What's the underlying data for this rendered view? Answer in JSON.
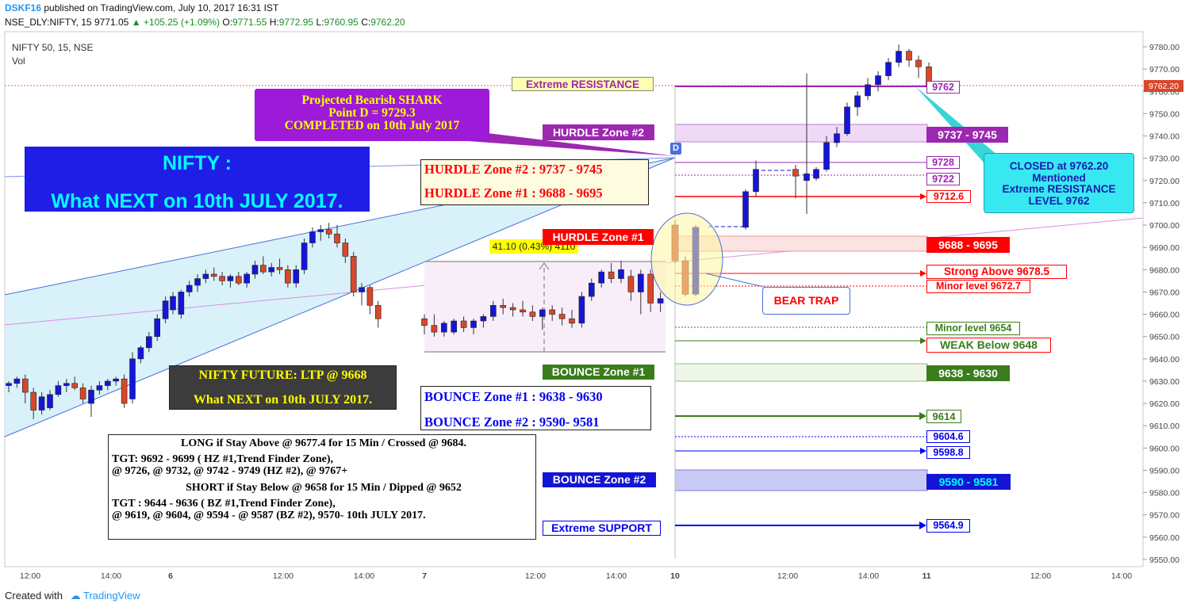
{
  "header": {
    "author": "DSKF16",
    "published": "published on TradingView.com, July 10, 2017 16:31 IST",
    "symbol": "NSE_DLY:NIFTY, 15",
    "last": "9771.05",
    "change": "▲ +105.25 (+1.09%)",
    "o_label": "O:",
    "o": "9771.55",
    "h_label": "H:",
    "h": "9772.95",
    "l_label": "L:",
    "l": "9760.95",
    "c_label": "C:",
    "c": "9762.20"
  },
  "legend": {
    "title": "NIFTY 50, 15, NSE",
    "vol": "Vol"
  },
  "footer": {
    "created": "Created with",
    "brand": "TradingView"
  },
  "colors": {
    "up": "#1515d9",
    "down": "#d9472b",
    "wedge": "#cfeef7",
    "accent_purple": "#9c27b0",
    "resistance_red": "#ff0000",
    "support_blue": "#0000ff",
    "bounce_green": "#3a7d1c"
  },
  "annotations": {
    "title_box": [
      "NIFTY :",
      "What NEXT on 10th JULY 2017."
    ],
    "shark_box": [
      "Projected Bearish SHARK",
      "Point D = 9729.3",
      "COMPLETED on 10th July 2017"
    ],
    "d_label": "D",
    "hurdle_box": [
      "HURDLE Zone #2 : 9737 - 9745",
      "HURDLE Zone #1 : 9688 - 9695"
    ],
    "future_box": [
      "NIFTY FUTURE: LTP @ 9668",
      "What NEXT on 10th JULY 2017."
    ],
    "bounce_box": [
      "BOUNCE Zone #1 : 9638 - 9630",
      "BOUNCE Zone #2 : 9590- 9581"
    ],
    "strategy_box": [
      "LONG if Stay Above @ 9677.4 for 15 Min / Crossed @ 9684.",
      "TGT: 9692 - 9699 ( HZ #1,Trend Finder Zone),",
      "@ 9726, @ 9732, @ 9742 - 9749 (HZ #2), @ 9767+",
      "SHORT if Stay Below @ 9658 for 15 Min / Dipped @ 9652",
      "TGT : 9644 - 9636 ( BZ #1,Trend Finder Zone),",
      "@ 9619, @ 9604, @ 9594 - @ 9587 (BZ #2), 9570- 10th JULY 2017."
    ],
    "measure_label": "41.10 (0.43%) 4110",
    "bear_trap": "BEAR TRAP",
    "closed_box": [
      "CLOSED at 9762.20",
      "Mentioned",
      "Extreme RESISTANCE",
      "LEVEL 9762"
    ],
    "zone_labels": {
      "extreme_resistance": "Extreme RESISTANCE",
      "hurdle2": "HURDLE Zone #2",
      "hurdle1": "HURDLE Zone #1",
      "bounce1": "BOUNCE Zone #1",
      "bounce2": "BOUNCE Zone #2",
      "extreme_support": "Extreme SUPPORT"
    },
    "level_labels": [
      {
        "id": "lvl-9762",
        "text": "9762",
        "price": 9762
      },
      {
        "id": "lvl-9737-9745",
        "text": "9737 - 9745",
        "price": 9741
      },
      {
        "id": "lvl-9728",
        "text": "9728",
        "price": 9728
      },
      {
        "id": "lvl-9722",
        "text": "9722",
        "price": 9722
      },
      {
        "id": "lvl-9712",
        "text": "9712.6",
        "price": 9712.6
      },
      {
        "id": "lvl-9688-9695",
        "text": "9688 - 9695",
        "price": 9691.5
      },
      {
        "id": "lvl-strong",
        "text": "Strong  Above 9678.5",
        "price": 9678.5
      },
      {
        "id": "lvl-minor-9672",
        "text": "Minor level 9672.7",
        "price": 9672.7
      },
      {
        "id": "lvl-minor-9654",
        "text": "Minor level 9654",
        "price": 9654
      },
      {
        "id": "lvl-weak",
        "text": "WEAK Below 9648",
        "price": 9648
      },
      {
        "id": "lvl-9638-9630",
        "text": "9638 - 9630",
        "price": 9634
      },
      {
        "id": "lvl-9614",
        "text": "9614",
        "price": 9614
      },
      {
        "id": "lvl-9604",
        "text": "9604.6",
        "price": 9604.6
      },
      {
        "id": "lvl-9598",
        "text": "9598.8",
        "price": 9598.8
      },
      {
        "id": "lvl-9590-9581",
        "text": "9590 - 9581",
        "price": 9585.5
      },
      {
        "id": "lvl-9564",
        "text": "9564.9",
        "price": 9564.9
      }
    ]
  },
  "chart_data": {
    "type": "candlestick",
    "title": "NIFTY 50, 15, NSE",
    "ylim": [
      9547,
      9784
    ],
    "y_ticks": [
      9550,
      9560,
      9570,
      9580,
      9590,
      9600,
      9610,
      9620,
      9630,
      9640,
      9650,
      9660,
      9670,
      9680,
      9690,
      9700,
      9710,
      9720,
      9730,
      9740,
      9750,
      9760,
      9770,
      9780
    ],
    "x_ticks": [
      "12:00",
      "14:00",
      "6",
      "12:00",
      "14:00",
      "7",
      "12:00",
      "14:00",
      "10",
      "12:00",
      "14:00",
      "11",
      "12:00",
      "14:00"
    ],
    "last_price": "9762.20",
    "bars": [
      [
        9628,
        9630,
        9625,
        9629
      ],
      [
        9629,
        9632,
        9627,
        9631
      ],
      [
        9631,
        9633,
        9620,
        9625
      ],
      [
        9625,
        9627,
        9613,
        9617
      ],
      [
        9617,
        9625,
        9615,
        9623
      ],
      [
        9618,
        9626,
        9617,
        9624
      ],
      [
        9624,
        9630,
        9623,
        9628
      ],
      [
        9628,
        9631,
        9625,
        9629
      ],
      [
        9629,
        9632,
        9626,
        9627
      ],
      [
        9627,
        9629,
        9620,
        9622
      ],
      [
        9620,
        9628,
        9614,
        9626
      ],
      [
        9626,
        9630,
        9624,
        9628
      ],
      [
        9628,
        9631,
        9626,
        9630
      ],
      [
        9630,
        9632,
        9628,
        9631
      ],
      [
        9631,
        9633,
        9618,
        9620
      ],
      [
        9622,
        9643,
        9620,
        9640
      ],
      [
        9640,
        9646,
        9638,
        9645
      ],
      [
        9645,
        9652,
        9643,
        9650
      ],
      [
        9650,
        9660,
        9648,
        9658
      ],
      [
        9658,
        9668,
        9656,
        9666
      ],
      [
        9662,
        9670,
        9660,
        9668
      ],
      [
        9660,
        9671,
        9658,
        9670
      ],
      [
        9670,
        9675,
        9668,
        9673
      ],
      [
        9673,
        9678,
        9670,
        9676
      ],
      [
        9676,
        9680,
        9674,
        9678
      ],
      [
        9678,
        9681,
        9675,
        9677
      ],
      [
        9677,
        9679,
        9673,
        9675
      ],
      [
        9675,
        9678,
        9672,
        9677
      ],
      [
        9677,
        9679,
        9673,
        9674
      ],
      [
        9674,
        9679,
        9672,
        9678
      ],
      [
        9678,
        9684,
        9676,
        9682
      ],
      [
        9682,
        9686,
        9678,
        9679
      ],
      [
        9679,
        9683,
        9677,
        9681
      ],
      [
        9681,
        9685,
        9678,
        9680
      ],
      [
        9680,
        9682,
        9672,
        9674
      ],
      [
        9674,
        9682,
        9672,
        9680
      ],
      [
        9680,
        9694,
        9678,
        9692
      ],
      [
        9692,
        9699,
        9690,
        9697
      ],
      [
        9697,
        9700,
        9693,
        9698
      ],
      [
        9698,
        9701,
        9694,
        9696
      ],
      [
        9696,
        9700,
        9690,
        9692
      ],
      [
        9692,
        9694,
        9683,
        9686
      ],
      [
        9686,
        9688,
        9668,
        9670
      ],
      [
        9670,
        9674,
        9664,
        9672
      ],
      [
        9672,
        9673,
        9660,
        9664
      ],
      [
        9664,
        9666,
        9654,
        9658
      ],
      [
        9658,
        9660,
        9651,
        9655
      ],
      [
        9655,
        9660,
        9650,
        9652
      ],
      [
        9652,
        9657,
        9650,
        9656
      ],
      [
        9652,
        9658,
        9651,
        9657
      ],
      [
        9657,
        9659,
        9652,
        9654
      ],
      [
        9654,
        9658,
        9651,
        9657
      ],
      [
        9657,
        9660,
        9654,
        9659
      ],
      [
        9659,
        9666,
        9657,
        9664
      ],
      [
        9664,
        9667,
        9660,
        9663
      ],
      [
        9663,
        9665,
        9659,
        9662
      ],
      [
        9662,
        9666,
        9659,
        9661
      ],
      [
        9661,
        9664,
        9657,
        9659
      ],
      [
        9659,
        9663,
        9653,
        9662
      ],
      [
        9662,
        9664,
        9657,
        9660
      ],
      [
        9660,
        9663,
        9655,
        9658
      ],
      [
        9658,
        9662,
        9654,
        9656
      ],
      [
        9656,
        9670,
        9654,
        9668
      ],
      [
        9668,
        9676,
        9666,
        9674
      ],
      [
        9674,
        9680,
        9672,
        9679
      ],
      [
        9679,
        9683,
        9674,
        9676
      ],
      [
        9676,
        9684,
        9674,
        9680
      ],
      [
        9677,
        9680,
        9666,
        9670
      ],
      [
        9670,
        9680,
        9660,
        9678
      ],
      [
        9678,
        9680,
        9661,
        9665
      ],
      [
        9665,
        9670,
        9661,
        9667
      ],
      [
        9700,
        9702,
        9683,
        9684
      ],
      [
        9684,
        9686,
        9668,
        9669
      ],
      [
        9669,
        9700,
        9668,
        9699
      ],
      [
        9699,
        9716,
        9698,
        9715
      ],
      [
        9715,
        9729,
        9713,
        9725
      ],
      [
        9725,
        9727,
        9712,
        9722
      ],
      [
        9720,
        9768,
        9705,
        9723
      ],
      [
        9721,
        9726,
        9720,
        9725
      ],
      [
        9725,
        9740,
        9724,
        9737
      ],
      [
        9737,
        9744,
        9735,
        9741
      ],
      [
        9741,
        9755,
        9740,
        9753
      ],
      [
        9753,
        9760,
        9749,
        9758
      ],
      [
        9758,
        9766,
        9756,
        9763
      ],
      [
        9763,
        9769,
        9760,
        9767
      ],
      [
        9767,
        9775,
        9765,
        9773
      ],
      [
        9773,
        9781,
        9771,
        9778
      ],
      [
        9778,
        9779,
        9771,
        9774
      ],
      [
        9774,
        9776,
        9766,
        9771
      ],
      [
        9771,
        9773,
        9760,
        9762
      ]
    ]
  }
}
